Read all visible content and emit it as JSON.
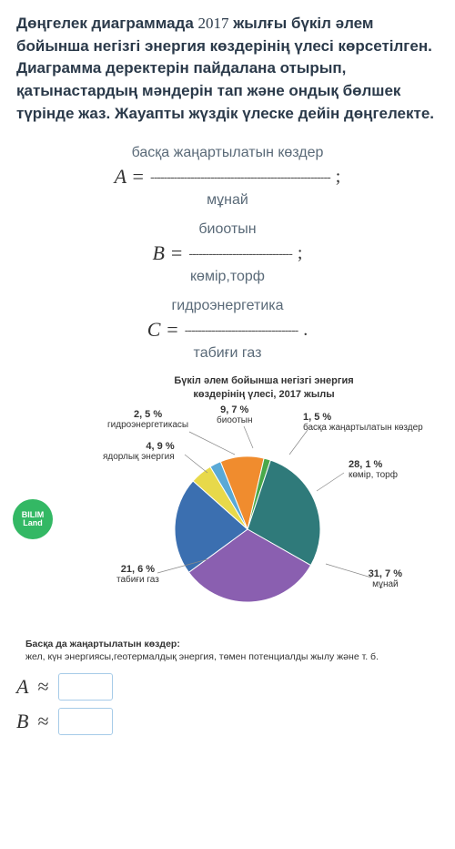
{
  "question": {
    "part1": "Дөңгелек диаграммада ",
    "year": "2017",
    "part2": " жылғы бүкіл әлем бойынша негізгі энергия көздерінің үлесі көрсетілген. Диаграмма деректерін пайдалана отырып, қатынастардың мәндерін тап және ондық бөлшек түрінде жаз. Жауапты жүздік үлеске дейін дөңгелекте."
  },
  "definitions": [
    {
      "var": "A",
      "numerator": "басқа жаңартылатын көздер",
      "denominator": "мұнай",
      "dash": "------------------------------------------------------",
      "tail": " ;"
    },
    {
      "var": "B",
      "numerator": "биоотын",
      "denominator": "көмір,торф",
      "dash": "-------------------------------",
      "tail": ";"
    },
    {
      "var": "C",
      "numerator": "гидроэнергетика",
      "denominator": "табиғи газ",
      "dash": "----------------------------------",
      "tail": "."
    }
  ],
  "chart": {
    "title_l1": "Бүкіл әлем бойынша негізгі энергия",
    "title_l2": "көздерінің үлесі, 2017 жылы",
    "badge_l1": "BILIM",
    "badge_l2": "Land",
    "slices": [
      {
        "label": "мұнай",
        "pct": "31, 7 %",
        "value": 31.7,
        "color": "#8a5fb0"
      },
      {
        "label": "табиғи газ",
        "pct": "21, 6 %",
        "value": 21.6,
        "color": "#3b6fb0"
      },
      {
        "label": "ядорлық энергия",
        "pct": "4, 9 %",
        "value": 4.9,
        "color": "#e8d94a"
      },
      {
        "label": "гидроэнергетикасы",
        "pct": "2, 5 %",
        "value": 2.5,
        "color": "#5aa9d6"
      },
      {
        "label": "биоотын",
        "pct": "9, 7 %",
        "value": 9.7,
        "color": "#f08c2e"
      },
      {
        "label": "басқа жаңартылатын көздер",
        "pct": "1, 5 %",
        "value": 1.5,
        "color": "#4aa84a"
      },
      {
        "label": "көмір, торф",
        "pct": "28, 1 %",
        "value": 28.1,
        "color": "#2f7a7a"
      }
    ],
    "footnote_l1": "Басқа да жаңартылатын көздер:",
    "footnote_l2": "жел, күн энергиясы,геотермалдық энергия, төмен потенциалды жылу және т. б."
  },
  "answers": [
    {
      "var": "A",
      "sym": "≈"
    },
    {
      "var": "B",
      "sym": "≈"
    }
  ]
}
